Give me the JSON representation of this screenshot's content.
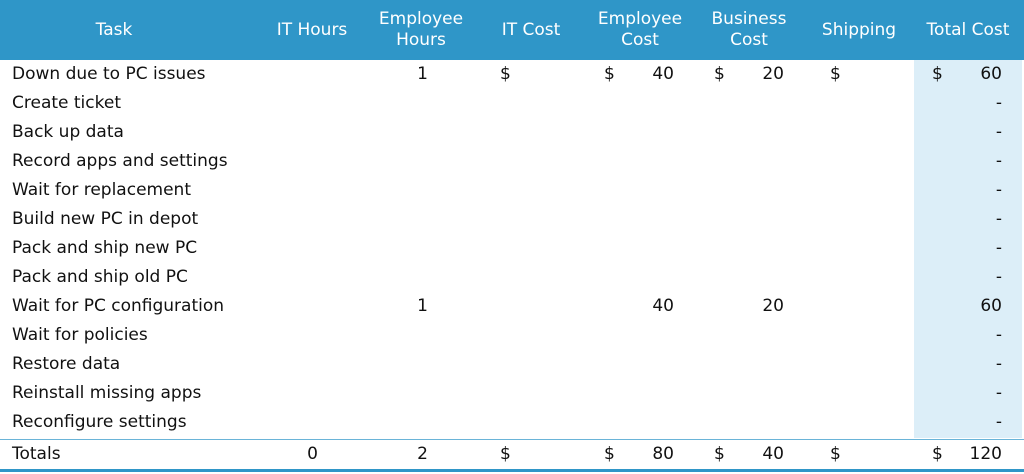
{
  "chart_data": {
    "type": "table",
    "columns": [
      "Task",
      "IT Hours",
      "Employee Hours",
      "IT Cost",
      "Employee Cost",
      "Business Cost",
      "Shipping",
      "Total Cost"
    ],
    "header_lines": [
      [
        "Task"
      ],
      [
        "IT Hours"
      ],
      [
        "Employee",
        "Hours"
      ],
      [
        "IT Cost"
      ],
      [
        "Employee",
        "Cost"
      ],
      [
        "Business",
        "Cost"
      ],
      [
        "Shipping"
      ],
      [
        "Total Cost"
      ]
    ],
    "rows": [
      {
        "task": "Down due to PC issues",
        "it_hours": "",
        "employee_hours": "1",
        "it_cost_symbol": "$",
        "it_cost": "",
        "employee_cost_symbol": "$",
        "employee_cost": "40",
        "business_cost_symbol": "$",
        "business_cost": "20",
        "shipping_symbol": "$",
        "shipping": "",
        "total_cost_symbol": "$",
        "total_cost": "60"
      },
      {
        "task": "Create ticket",
        "it_hours": "",
        "employee_hours": "",
        "it_cost_symbol": "",
        "it_cost": "",
        "employee_cost_symbol": "",
        "employee_cost": "",
        "business_cost_symbol": "",
        "business_cost": "",
        "shipping_symbol": "",
        "shipping": "",
        "total_cost_symbol": "",
        "total_cost": "-"
      },
      {
        "task": "Back up data",
        "it_hours": "",
        "employee_hours": "",
        "it_cost_symbol": "",
        "it_cost": "",
        "employee_cost_symbol": "",
        "employee_cost": "",
        "business_cost_symbol": "",
        "business_cost": "",
        "shipping_symbol": "",
        "shipping": "",
        "total_cost_symbol": "",
        "total_cost": "-"
      },
      {
        "task": "Record apps and settings",
        "it_hours": "",
        "employee_hours": "",
        "it_cost_symbol": "",
        "it_cost": "",
        "employee_cost_symbol": "",
        "employee_cost": "",
        "business_cost_symbol": "",
        "business_cost": "",
        "shipping_symbol": "",
        "shipping": "",
        "total_cost_symbol": "",
        "total_cost": "-"
      },
      {
        "task": "Wait for replacement",
        "it_hours": "",
        "employee_hours": "",
        "it_cost_symbol": "",
        "it_cost": "",
        "employee_cost_symbol": "",
        "employee_cost": "",
        "business_cost_symbol": "",
        "business_cost": "",
        "shipping_symbol": "",
        "shipping": "",
        "total_cost_symbol": "",
        "total_cost": "-"
      },
      {
        "task": "Build new PC in depot",
        "it_hours": "",
        "employee_hours": "",
        "it_cost_symbol": "",
        "it_cost": "",
        "employee_cost_symbol": "",
        "employee_cost": "",
        "business_cost_symbol": "",
        "business_cost": "",
        "shipping_symbol": "",
        "shipping": "",
        "total_cost_symbol": "",
        "total_cost": "-"
      },
      {
        "task": "Pack and ship new PC",
        "it_hours": "",
        "employee_hours": "",
        "it_cost_symbol": "",
        "it_cost": "",
        "employee_cost_symbol": "",
        "employee_cost": "",
        "business_cost_symbol": "",
        "business_cost": "",
        "shipping_symbol": "",
        "shipping": "",
        "total_cost_symbol": "",
        "total_cost": "-"
      },
      {
        "task": "Pack and ship old PC",
        "it_hours": "",
        "employee_hours": "",
        "it_cost_symbol": "",
        "it_cost": "",
        "employee_cost_symbol": "",
        "employee_cost": "",
        "business_cost_symbol": "",
        "business_cost": "",
        "shipping_symbol": "",
        "shipping": "",
        "total_cost_symbol": "",
        "total_cost": "-"
      },
      {
        "task": "Wait for PC configuration",
        "it_hours": "",
        "employee_hours": "1",
        "it_cost_symbol": "",
        "it_cost": "",
        "employee_cost_symbol": "",
        "employee_cost": "40",
        "business_cost_symbol": "",
        "business_cost": "20",
        "shipping_symbol": "",
        "shipping": "",
        "total_cost_symbol": "",
        "total_cost": "60"
      },
      {
        "task": "Wait for policies",
        "it_hours": "",
        "employee_hours": "",
        "it_cost_symbol": "",
        "it_cost": "",
        "employee_cost_symbol": "",
        "employee_cost": "",
        "business_cost_symbol": "",
        "business_cost": "",
        "shipping_symbol": "",
        "shipping": "",
        "total_cost_symbol": "",
        "total_cost": "-"
      },
      {
        "task": "Restore data",
        "it_hours": "",
        "employee_hours": "",
        "it_cost_symbol": "",
        "it_cost": "",
        "employee_cost_symbol": "",
        "employee_cost": "",
        "business_cost_symbol": "",
        "business_cost": "",
        "shipping_symbol": "",
        "shipping": "",
        "total_cost_symbol": "",
        "total_cost": "-"
      },
      {
        "task": "Reinstall missing apps",
        "it_hours": "",
        "employee_hours": "",
        "it_cost_symbol": "",
        "it_cost": "",
        "employee_cost_symbol": "",
        "employee_cost": "",
        "business_cost_symbol": "",
        "business_cost": "",
        "shipping_symbol": "",
        "shipping": "",
        "total_cost_symbol": "",
        "total_cost": "-"
      },
      {
        "task": "Reconfigure settings",
        "it_hours": "",
        "employee_hours": "",
        "it_cost_symbol": "",
        "it_cost": "",
        "employee_cost_symbol": "",
        "employee_cost": "",
        "business_cost_symbol": "",
        "business_cost": "",
        "shipping_symbol": "",
        "shipping": "",
        "total_cost_symbol": "",
        "total_cost": "-"
      }
    ],
    "totals": {
      "task": "Totals",
      "it_hours": "0",
      "employee_hours": "2",
      "it_cost_symbol": "$",
      "it_cost": "",
      "employee_cost_symbol": "$",
      "employee_cost": "80",
      "business_cost_symbol": "$",
      "business_cost": "40",
      "shipping_symbol": "$",
      "shipping": "",
      "total_cost_symbol": "$",
      "total_cost": "120"
    }
  },
  "colors": {
    "header_bg": "#2f96c8",
    "header_text": "#ffffff",
    "total_column_bg": "#dceef8",
    "rule": "#6ab4d8"
  }
}
